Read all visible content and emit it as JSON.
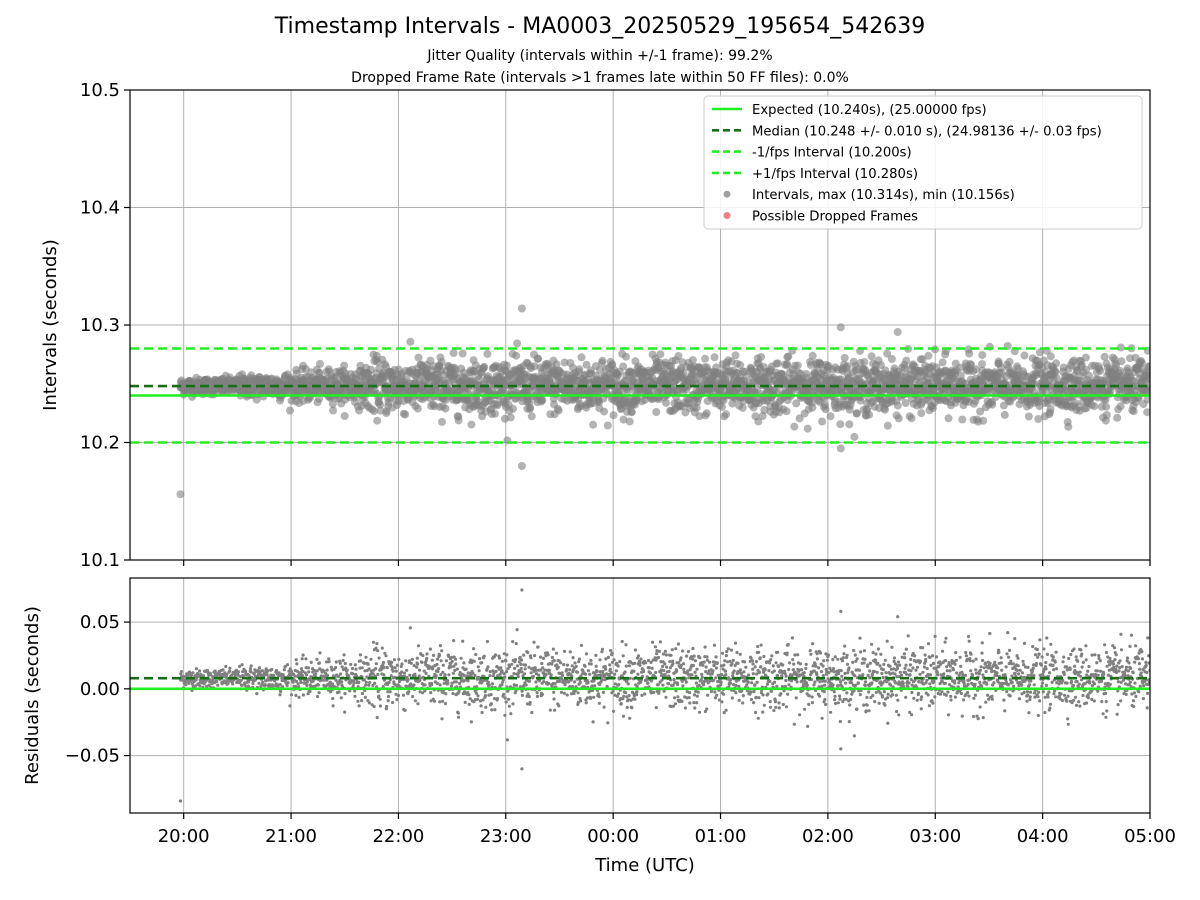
{
  "header": {
    "title": "Timestamp Intervals - MA0003_20250529_195654_542639",
    "subtitle_1": "Jitter Quality (intervals within +/-1 frame): 99.2%",
    "subtitle_2": "Dropped Frame Rate (intervals >1 frames late within 50 FF files): 0.0%"
  },
  "colors": {
    "expected": "#22ee22",
    "median": "#1a6e1a",
    "interval": "#22ee22",
    "points": "#808080",
    "dropped": "#ee5555",
    "grid": "#b0b0b0"
  },
  "chart_data": [
    {
      "type": "scatter",
      "ylabel": "Intervals (seconds)",
      "xlabel": "",
      "ylim": [
        10.1,
        10.5
      ],
      "yticks": [
        10.1,
        10.2,
        10.3,
        10.4,
        10.5
      ],
      "ytick_labels": [
        "10.1",
        "10.2",
        "10.3",
        "10.4",
        "10.5"
      ],
      "xlim_hours": [
        19.5,
        29.0
      ],
      "xticks_hours": [
        20,
        21,
        22,
        23,
        24,
        25,
        26,
        27,
        28,
        29
      ],
      "grid": true,
      "legend": "top-right",
      "reference_lines": [
        {
          "name": "Expected (10.240s), (25.00000 fps)",
          "y": 10.24,
          "style": "solid",
          "color": "#22ee22"
        },
        {
          "name": "Median (10.248 +/- 0.010 s), (24.98136 +/- 0.03 fps)",
          "y": 10.248,
          "style": "dashed",
          "color": "#1a6e1a"
        },
        {
          "name": "-1/fps Interval (10.200s)",
          "y": 10.2,
          "style": "dashed",
          "color": "#22ee22"
        },
        {
          "name": "+1/fps Interval (10.280s)",
          "y": 10.28,
          "style": "dashed",
          "color": "#22ee22"
        }
      ],
      "series": [
        {
          "name": "Intervals, max (10.314s), min (10.156s)",
          "marker": "circle",
          "color": "#808080",
          "max": 10.314,
          "min": 10.156,
          "median": 10.248,
          "std": 0.01
        },
        {
          "name": "Possible Dropped Frames",
          "marker": "circle",
          "color": "#ee5555",
          "values": []
        }
      ],
      "notable_points": [
        {
          "x_hour": 19.97,
          "y": 10.156
        },
        {
          "x_hour": 23.15,
          "y": 10.314
        },
        {
          "x_hour": 23.15,
          "y": 10.18
        },
        {
          "x_hour": 26.12,
          "y": 10.298
        },
        {
          "x_hour": 26.12,
          "y": 10.195
        },
        {
          "x_hour": 26.65,
          "y": 10.294
        }
      ]
    },
    {
      "type": "scatter",
      "ylabel": "Residuals (seconds)",
      "xlabel": "Time (UTC)",
      "ylim": [
        -0.093,
        0.083
      ],
      "yticks": [
        -0.05,
        0.0,
        0.05
      ],
      "ytick_labels": [
        "−0.05",
        "0.00",
        "0.05"
      ],
      "xlim_hours": [
        19.5,
        29.0
      ],
      "xticks_hours": [
        20,
        21,
        22,
        23,
        24,
        25,
        26,
        27,
        28,
        29
      ],
      "xtick_labels": [
        "20:00",
        "21:00",
        "22:00",
        "23:00",
        "00:00",
        "01:00",
        "02:00",
        "03:00",
        "04:00",
        "05:00"
      ],
      "grid": true,
      "reference_lines": [
        {
          "y": 0.0,
          "style": "solid",
          "color": "#22ee22"
        },
        {
          "y": 0.008,
          "style": "dashed",
          "color": "#1a6e1a"
        }
      ],
      "notable_points": [
        {
          "x_hour": 19.97,
          "y": -0.084
        },
        {
          "x_hour": 23.15,
          "y": 0.074
        },
        {
          "x_hour": 23.15,
          "y": -0.06
        },
        {
          "x_hour": 26.12,
          "y": 0.058
        },
        {
          "x_hour": 26.12,
          "y": -0.045
        },
        {
          "x_hour": 26.65,
          "y": 0.054
        }
      ]
    }
  ]
}
